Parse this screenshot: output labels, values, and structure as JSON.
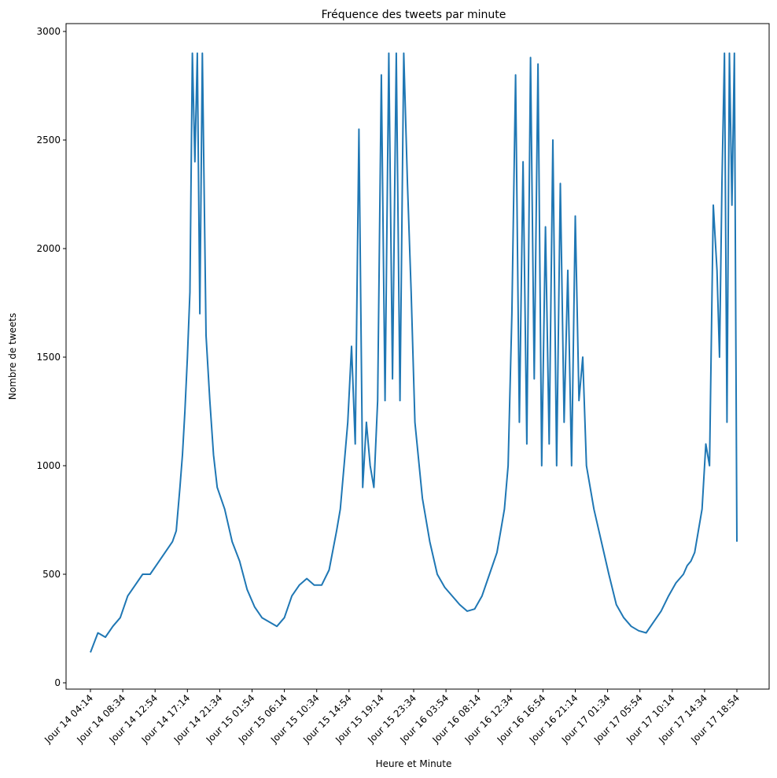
{
  "chart_data": {
    "type": "line",
    "title": "Fréquence des tweets par minute",
    "xlabel": "Heure et Minute",
    "ylabel": "Nombre de tweets",
    "ylim": [
      0,
      3000
    ],
    "yticks": [
      0,
      500,
      1000,
      1500,
      2000,
      2500,
      3000
    ],
    "xtick_labels": [
      "Jour 14 04:14",
      "Jour 14 08:34",
      "Jour 14 12:54",
      "Jour 14 17:14",
      "Jour 14 21:34",
      "Jour 15 01:54",
      "Jour 15 06:14",
      "Jour 15 10:34",
      "Jour 15 14:54",
      "Jour 15 19:14",
      "Jour 15 23:34",
      "Jour 16 03:54",
      "Jour 16 08:14",
      "Jour 16 12:34",
      "Jour 16 16:54",
      "Jour 16 21:14",
      "Jour 17 01:34",
      "Jour 17 05:54",
      "Jour 17 10:14",
      "Jour 17 14:34",
      "Jour 17 18:54"
    ],
    "grid": false,
    "color": "#1f77b4",
    "series": [
      {
        "x": [
          "Jour 14 04:14",
          "Jour 14 05:14",
          "Jour 14 06:14",
          "Jour 14 07:14",
          "Jour 14 08:14",
          "Jour 14 09:14",
          "Jour 14 10:14",
          "Jour 14 11:14",
          "Jour 14 12:14",
          "Jour 14 13:14",
          "Jour 14 14:14",
          "Jour 14 15:14",
          "Jour 14 15:44",
          "Jour 14 16:14",
          "Jour 14 16:34",
          "Jour 14 16:54",
          "Jour 14 17:14",
          "Jour 14 17:34",
          "Jour 14 17:54",
          "Jour 14 18:14",
          "Jour 14 18:34",
          "Jour 14 18:54",
          "Jour 14 19:14",
          "Jour 14 19:44",
          "Jour 14 20:14",
          "Jour 14 20:44",
          "Jour 14 21:14",
          "Jour 14 22:14",
          "Jour 14 23:14",
          "Jour 15 00:14",
          "Jour 15 01:14",
          "Jour 15 02:14",
          "Jour 15 03:14",
          "Jour 15 04:14",
          "Jour 15 05:14",
          "Jour 15 06:14",
          "Jour 15 07:14",
          "Jour 15 08:14",
          "Jour 15 09:14",
          "Jour 15 10:14",
          "Jour 15 11:14",
          "Jour 15 12:14",
          "Jour 15 13:14",
          "Jour 15 13:44",
          "Jour 15 14:14",
          "Jour 15 14:44",
          "Jour 15 15:14",
          "Jour 15 15:44",
          "Jour 15 16:14",
          "Jour 15 16:44",
          "Jour 15 17:14",
          "Jour 15 17:44",
          "Jour 15 18:14",
          "Jour 15 18:44",
          "Jour 15 19:14",
          "Jour 15 19:44",
          "Jour 15 20:14",
          "Jour 15 20:44",
          "Jour 15 21:14",
          "Jour 15 21:44",
          "Jour 15 22:14",
          "Jour 15 22:44",
          "Jour 15 23:14",
          "Jour 15 23:44",
          "Jour 16 00:44",
          "Jour 16 01:44",
          "Jour 16 02:44",
          "Jour 16 03:44",
          "Jour 16 04:44",
          "Jour 16 05:44",
          "Jour 16 06:44",
          "Jour 16 07:44",
          "Jour 16 08:44",
          "Jour 16 09:44",
          "Jour 16 10:44",
          "Jour 16 11:14",
          "Jour 16 11:44",
          "Jour 16 12:14",
          "Jour 16 12:44",
          "Jour 16 13:14",
          "Jour 16 13:44",
          "Jour 16 14:14",
          "Jour 16 14:44",
          "Jour 16 15:14",
          "Jour 16 15:44",
          "Jour 16 16:14",
          "Jour 16 16:44",
          "Jour 16 17:14",
          "Jour 16 17:44",
          "Jour 16 18:14",
          "Jour 16 18:44",
          "Jour 16 19:14",
          "Jour 16 19:44",
          "Jour 16 20:14",
          "Jour 16 20:44",
          "Jour 16 21:14",
          "Jour 16 21:44",
          "Jour 16 22:14",
          "Jour 16 22:44",
          "Jour 16 23:44",
          "Jour 17 00:44",
          "Jour 17 01:44",
          "Jour 17 02:44",
          "Jour 17 03:44",
          "Jour 17 04:44",
          "Jour 17 05:44",
          "Jour 17 06:44",
          "Jour 17 07:44",
          "Jour 17 08:44",
          "Jour 17 09:44",
          "Jour 17 10:44",
          "Jour 17 11:44",
          "Jour 17 12:14",
          "Jour 17 12:44",
          "Jour 17 13:14",
          "Jour 17 13:44",
          "Jour 17 14:14",
          "Jour 17 14:44",
          "Jour 17 15:14",
          "Jour 17 15:44",
          "Jour 17 16:14",
          "Jour 17 16:34",
          "Jour 17 16:54",
          "Jour 17 17:14",
          "Jour 17 17:34",
          "Jour 17 17:54",
          "Jour 17 18:14",
          "Jour 17 18:34",
          "Jour 17 18:54"
        ],
        "y": [
          140,
          230,
          210,
          260,
          300,
          400,
          450,
          500,
          500,
          550,
          600,
          650,
          700,
          900,
          1050,
          1250,
          1500,
          1800,
          2900,
          2400,
          2900,
          1700,
          2900,
          1600,
          1300,
          1050,
          900,
          800,
          650,
          560,
          430,
          350,
          300,
          280,
          260,
          300,
          400,
          450,
          480,
          450,
          450,
          520,
          700,
          800,
          1000,
          1200,
          1550,
          1100,
          2550,
          900,
          1200,
          1000,
          900,
          1300,
          2800,
          1300,
          2900,
          1400,
          2900,
          1300,
          2900,
          2300,
          1800,
          1200,
          850,
          650,
          500,
          440,
          400,
          360,
          330,
          340,
          400,
          500,
          600,
          700,
          800,
          1000,
          1700,
          2800,
          1200,
          2400,
          1100,
          2880,
          1400,
          2850,
          1000,
          2100,
          1100,
          2500,
          1000,
          2300,
          1200,
          1900,
          1000,
          2150,
          1300,
          1500,
          1000,
          800,
          650,
          500,
          360,
          300,
          260,
          240,
          230,
          280,
          330,
          400,
          460,
          500,
          540,
          560,
          600,
          700,
          800,
          1100,
          1000,
          2200,
          1900,
          1500,
          2300,
          2900,
          1200,
          2900,
          2200,
          2900,
          650
        ]
      }
    ]
  }
}
